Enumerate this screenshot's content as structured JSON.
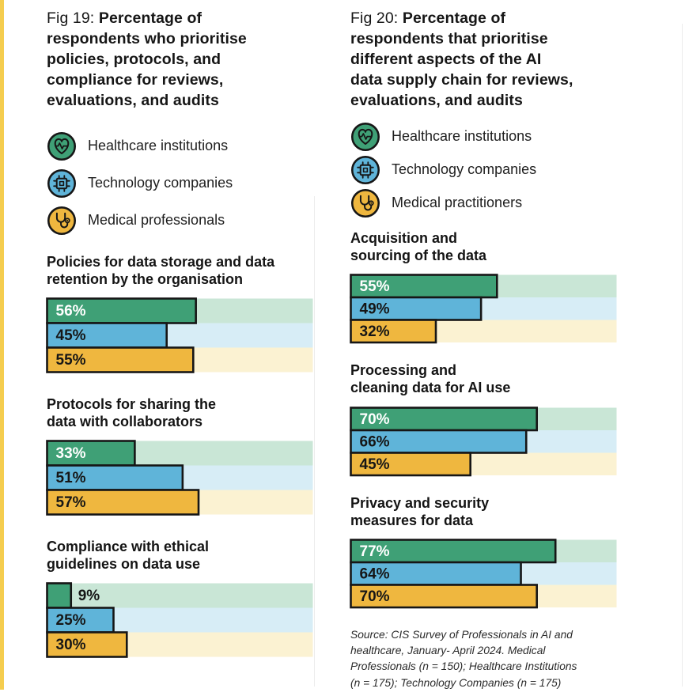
{
  "colors": {
    "green": "#3FA076",
    "green_track": "#C9E6D6",
    "blue": "#5FB4D9",
    "blue_track": "#D7EDF6",
    "yellow": "#EFB73F",
    "yellow_track": "#FBF2D2",
    "bar_border": "#161616",
    "edge_strip": "#F5CD4F"
  },
  "figures": [
    {
      "fig_label": "Fig 19:",
      "title_lines": "Percentage of\nrespondents who prioritise\npolicies, protocols, and\ncompliance for reviews,\nevaluations, and audits",
      "legend": [
        {
          "icon": "heart-pulse-icon",
          "label": "Healthcare institutions"
        },
        {
          "icon": "chip-icon",
          "label": "Technology companies"
        },
        {
          "icon": "stethoscope-icon",
          "label": "Medical professionals"
        }
      ],
      "groups": [
        {
          "label_lines": "Policies for data storage and data\nretention by the organisation",
          "values": [
            56,
            45,
            55
          ]
        },
        {
          "label_lines": "Protocols for sharing the\ndata with collaborators",
          "values": [
            33,
            51,
            57
          ]
        },
        {
          "label_lines": "Compliance with ethical\nguidelines on data use",
          "values": [
            9,
            25,
            30
          ]
        }
      ]
    },
    {
      "fig_label": "Fig 20:",
      "title_lines": "Percentage of\nrespondents that prioritise\ndifferent aspects of the AI\ndata supply chain for reviews,\nevaluations, and audits",
      "legend": [
        {
          "icon": "heart-pulse-icon",
          "label": "Healthcare institutions"
        },
        {
          "icon": "chip-icon",
          "label": "Technology companies"
        },
        {
          "icon": "stethoscope-icon",
          "label": "Medical practitioners"
        }
      ],
      "groups": [
        {
          "label_lines": "Acquisition and\nsourcing of the data",
          "values": [
            55,
            49,
            32
          ]
        },
        {
          "label_lines": "Processing and\ncleaning data for AI use",
          "values": [
            70,
            66,
            45
          ]
        },
        {
          "label_lines": "Privacy and security\nmeasures for data",
          "values": [
            77,
            64,
            70
          ]
        }
      ],
      "source_lines": "Source: CIS Survey of Professionals in AI and\nhealthcare, January- April 2024. Medical\nProfessionals (n = 150); Healthcare Institutions\n(n = 175); Technology Companies (n = 175)"
    }
  ],
  "chart_data": [
    {
      "type": "bar",
      "orientation": "horizontal",
      "title": "Fig 19: Percentage of respondents who prioritise policies, protocols, and compliance for reviews, evaluations, and audits",
      "categories": [
        "Policies for data storage and data retention by the organisation",
        "Protocols for sharing the data with collaborators",
        "Compliance with ethical guidelines on data use"
      ],
      "series": [
        {
          "name": "Healthcare institutions",
          "color": "#3FA076",
          "values": [
            56,
            33,
            9
          ]
        },
        {
          "name": "Technology companies",
          "color": "#5FB4D9",
          "values": [
            45,
            51,
            25
          ]
        },
        {
          "name": "Medical professionals",
          "color": "#EFB73F",
          "values": [
            55,
            57,
            30
          ]
        }
      ],
      "unit": "%",
      "xlim": [
        0,
        100
      ],
      "grid": false,
      "legend_position": "top",
      "value_labels": "inside-start"
    },
    {
      "type": "bar",
      "orientation": "horizontal",
      "title": "Fig 20: Percentage of respondents that prioritise different aspects of the AI data supply chain for reviews, evaluations, and audits",
      "categories": [
        "Acquisition and sourcing of the data",
        "Processing and cleaning data for AI use",
        "Privacy and security measures for data"
      ],
      "series": [
        {
          "name": "Healthcare institutions",
          "color": "#3FA076",
          "values": [
            55,
            70,
            77
          ]
        },
        {
          "name": "Technology companies",
          "color": "#5FB4D9",
          "values": [
            49,
            66,
            64
          ]
        },
        {
          "name": "Medical practitioners",
          "color": "#EFB73F",
          "values": [
            32,
            45,
            70
          ]
        }
      ],
      "unit": "%",
      "xlim": [
        0,
        100
      ],
      "grid": false,
      "legend_position": "top",
      "value_labels": "inside-start",
      "source": "Source: CIS Survey of Professionals in AI and healthcare, January- April 2024. Medical Professionals (n = 150); Healthcare Institutions (n = 175); Technology Companies (n = 175)"
    }
  ]
}
